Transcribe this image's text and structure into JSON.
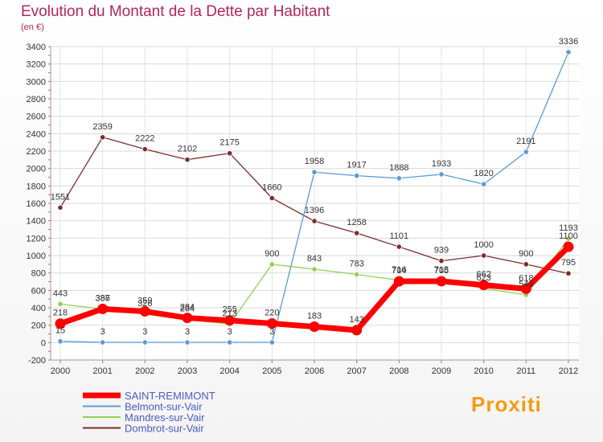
{
  "brand": "Proxiti",
  "chart_data": {
    "type": "line",
    "title": "Evolution du Montant de la Dette par Habitant",
    "subtitle": "(en €)",
    "xlabel": "",
    "ylabel": "",
    "x": [
      "2000",
      "2001",
      "2002",
      "2003",
      "2004",
      "2005",
      "2006",
      "2007",
      "2008",
      "2009",
      "2010",
      "2011",
      "2012"
    ],
    "ylim": [
      -200,
      3400
    ],
    "yticks": [
      -200,
      0,
      200,
      400,
      600,
      800,
      1000,
      1200,
      1400,
      1600,
      1800,
      2000,
      2200,
      2400,
      2600,
      2800,
      3000,
      3200,
      3400
    ],
    "grid": true,
    "legend_position": "bottom-left",
    "series": [
      {
        "name": "SAINT-REMIMONT",
        "color": "#ff0000",
        "values": [
          218,
          387,
          359,
          284,
          255,
          220,
          183,
          143,
          704,
          705,
          662,
          618,
          1100
        ]
      },
      {
        "name": "Belmont-sur-Vair",
        "color": "#5b9bd5",
        "values": [
          15,
          3,
          3,
          3,
          3,
          3,
          1958,
          1917,
          1888,
          1933,
          1820,
          2191,
          3336
        ]
      },
      {
        "name": "Mandres-sur-Vair",
        "color": "#92d050",
        "values": [
          443,
          386,
          326,
          264,
          213,
          900,
          843,
          783,
          716,
          713,
          623,
          549,
          1193
        ]
      },
      {
        "name": "Dombrot-sur-Vair",
        "color": "#7b2c2c",
        "values": [
          1551,
          2359,
          2222,
          2102,
          2175,
          1660,
          1396,
          1258,
          1101,
          939,
          1000,
          900,
          795
        ]
      }
    ]
  }
}
